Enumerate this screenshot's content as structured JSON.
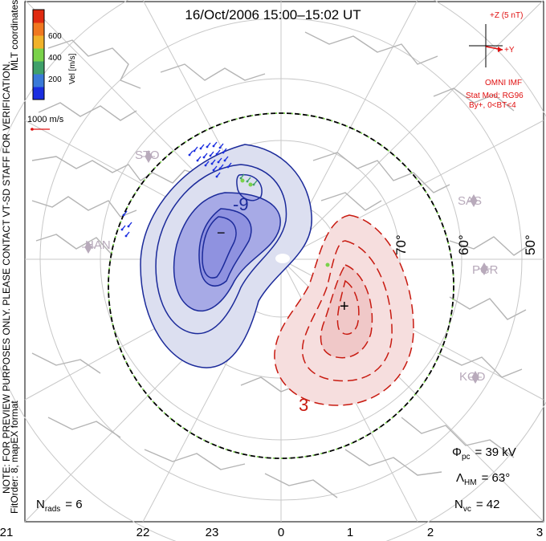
{
  "title": "16/Oct/2006 15:00–15:02 UT",
  "side_note_1": "NOTE: FOR PREVIEW PURPOSES ONLY. PLEASE CONTACT VT-SD STAFF FOR VERIFICATION.",
  "side_note_2": "FitOrder: 8, mapEX format",
  "coords_label": "MLT coordinates",
  "colorbar": {
    "label": "Vel [m/s]",
    "ticks": [
      "200",
      "400",
      "600"
    ],
    "colors": [
      "#1a2ee0",
      "#3a7ad8",
      "#3fa06a",
      "#7ad24a",
      "#f0b22a",
      "#f07820",
      "#e02a10"
    ]
  },
  "velocity_scale": "1000 m/s",
  "imf": {
    "axis_z": "+Z (5 nT)",
    "axis_y": "+Y",
    "source": "OMNI IMF",
    "model": "Stat Mod: RG96",
    "condition": "By+, 0<BT<4",
    "color": "#e01010"
  },
  "stations": [
    "STO",
    "HAN",
    "SAS",
    "PGR",
    "KOD"
  ],
  "lat_labels": [
    "70°",
    "60°",
    "50°"
  ],
  "contour_labels": {
    "negative": "-9",
    "positive": "3",
    "min_marker": "−",
    "max_marker": "+"
  },
  "stats": {
    "phi_pc": "Φ",
    "phi_sub": "pc",
    "phi_val": "= 39 kV",
    "lambda": "Λ",
    "lambda_sub": "HM",
    "lambda_val": "= 63°",
    "nvc": "N",
    "nvc_sub": "vc",
    "nvc_val": "= 42",
    "nrads": "N",
    "nrads_sub": "rads",
    "nrads_val": "= 6"
  },
  "mlt_labels": [
    "21",
    "22",
    "23",
    "0",
    "1",
    "2",
    "3"
  ],
  "colors": {
    "negative_fill": "#dcdff0",
    "negative_fill_inner": "#a7aae6",
    "negative_line": "#1b2a9a",
    "positive_fill": "#f6dede",
    "positive_fill_inner": "#f0c8c8",
    "positive_line": "#c81a10",
    "grid": "#c8c8c8",
    "coast": "#b4b4b4",
    "station": "#b8aabb"
  }
}
